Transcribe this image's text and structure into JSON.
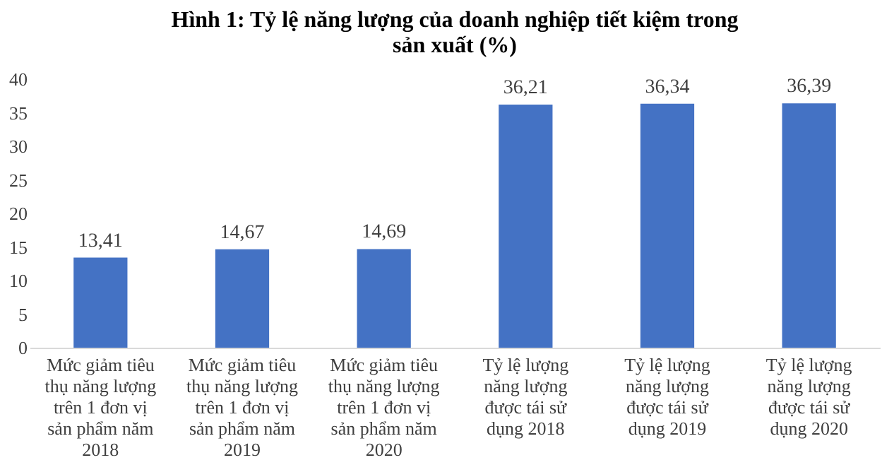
{
  "chart_data": {
    "type": "bar",
    "title": "Hình 1: Tỷ lệ năng lượng của doanh nghiệp tiết kiệm trong sản xuất (%)",
    "categories": [
      "Mức giảm tiêu thụ năng lượng trên 1 đơn vị sản phẩm năm 2018",
      "Mức giảm tiêu thụ năng lượng trên 1 đơn vị sản phẩm năm 2019",
      "Mức giảm tiêu thụ năng lượng trên 1 đơn vị sản phẩm năm 2020",
      "Tỷ lệ lượng năng lượng được tái sử dụng 2018",
      "Tỷ lệ lượng năng lượng được tái sử dụng 2019",
      "Tỷ lệ lượng năng lượng được tái sử dụng 2020"
    ],
    "values": [
      13.41,
      14.67,
      14.69,
      36.21,
      36.34,
      36.39
    ],
    "value_labels": [
      "13,41",
      "14,67",
      "14,69",
      "36,21",
      "36,34",
      "36,39"
    ],
    "color": "#4472c4",
    "ylim": [
      0,
      40
    ],
    "yticks": [
      0,
      5,
      10,
      15,
      20,
      25,
      30,
      35,
      40
    ],
    "grid": false
  }
}
